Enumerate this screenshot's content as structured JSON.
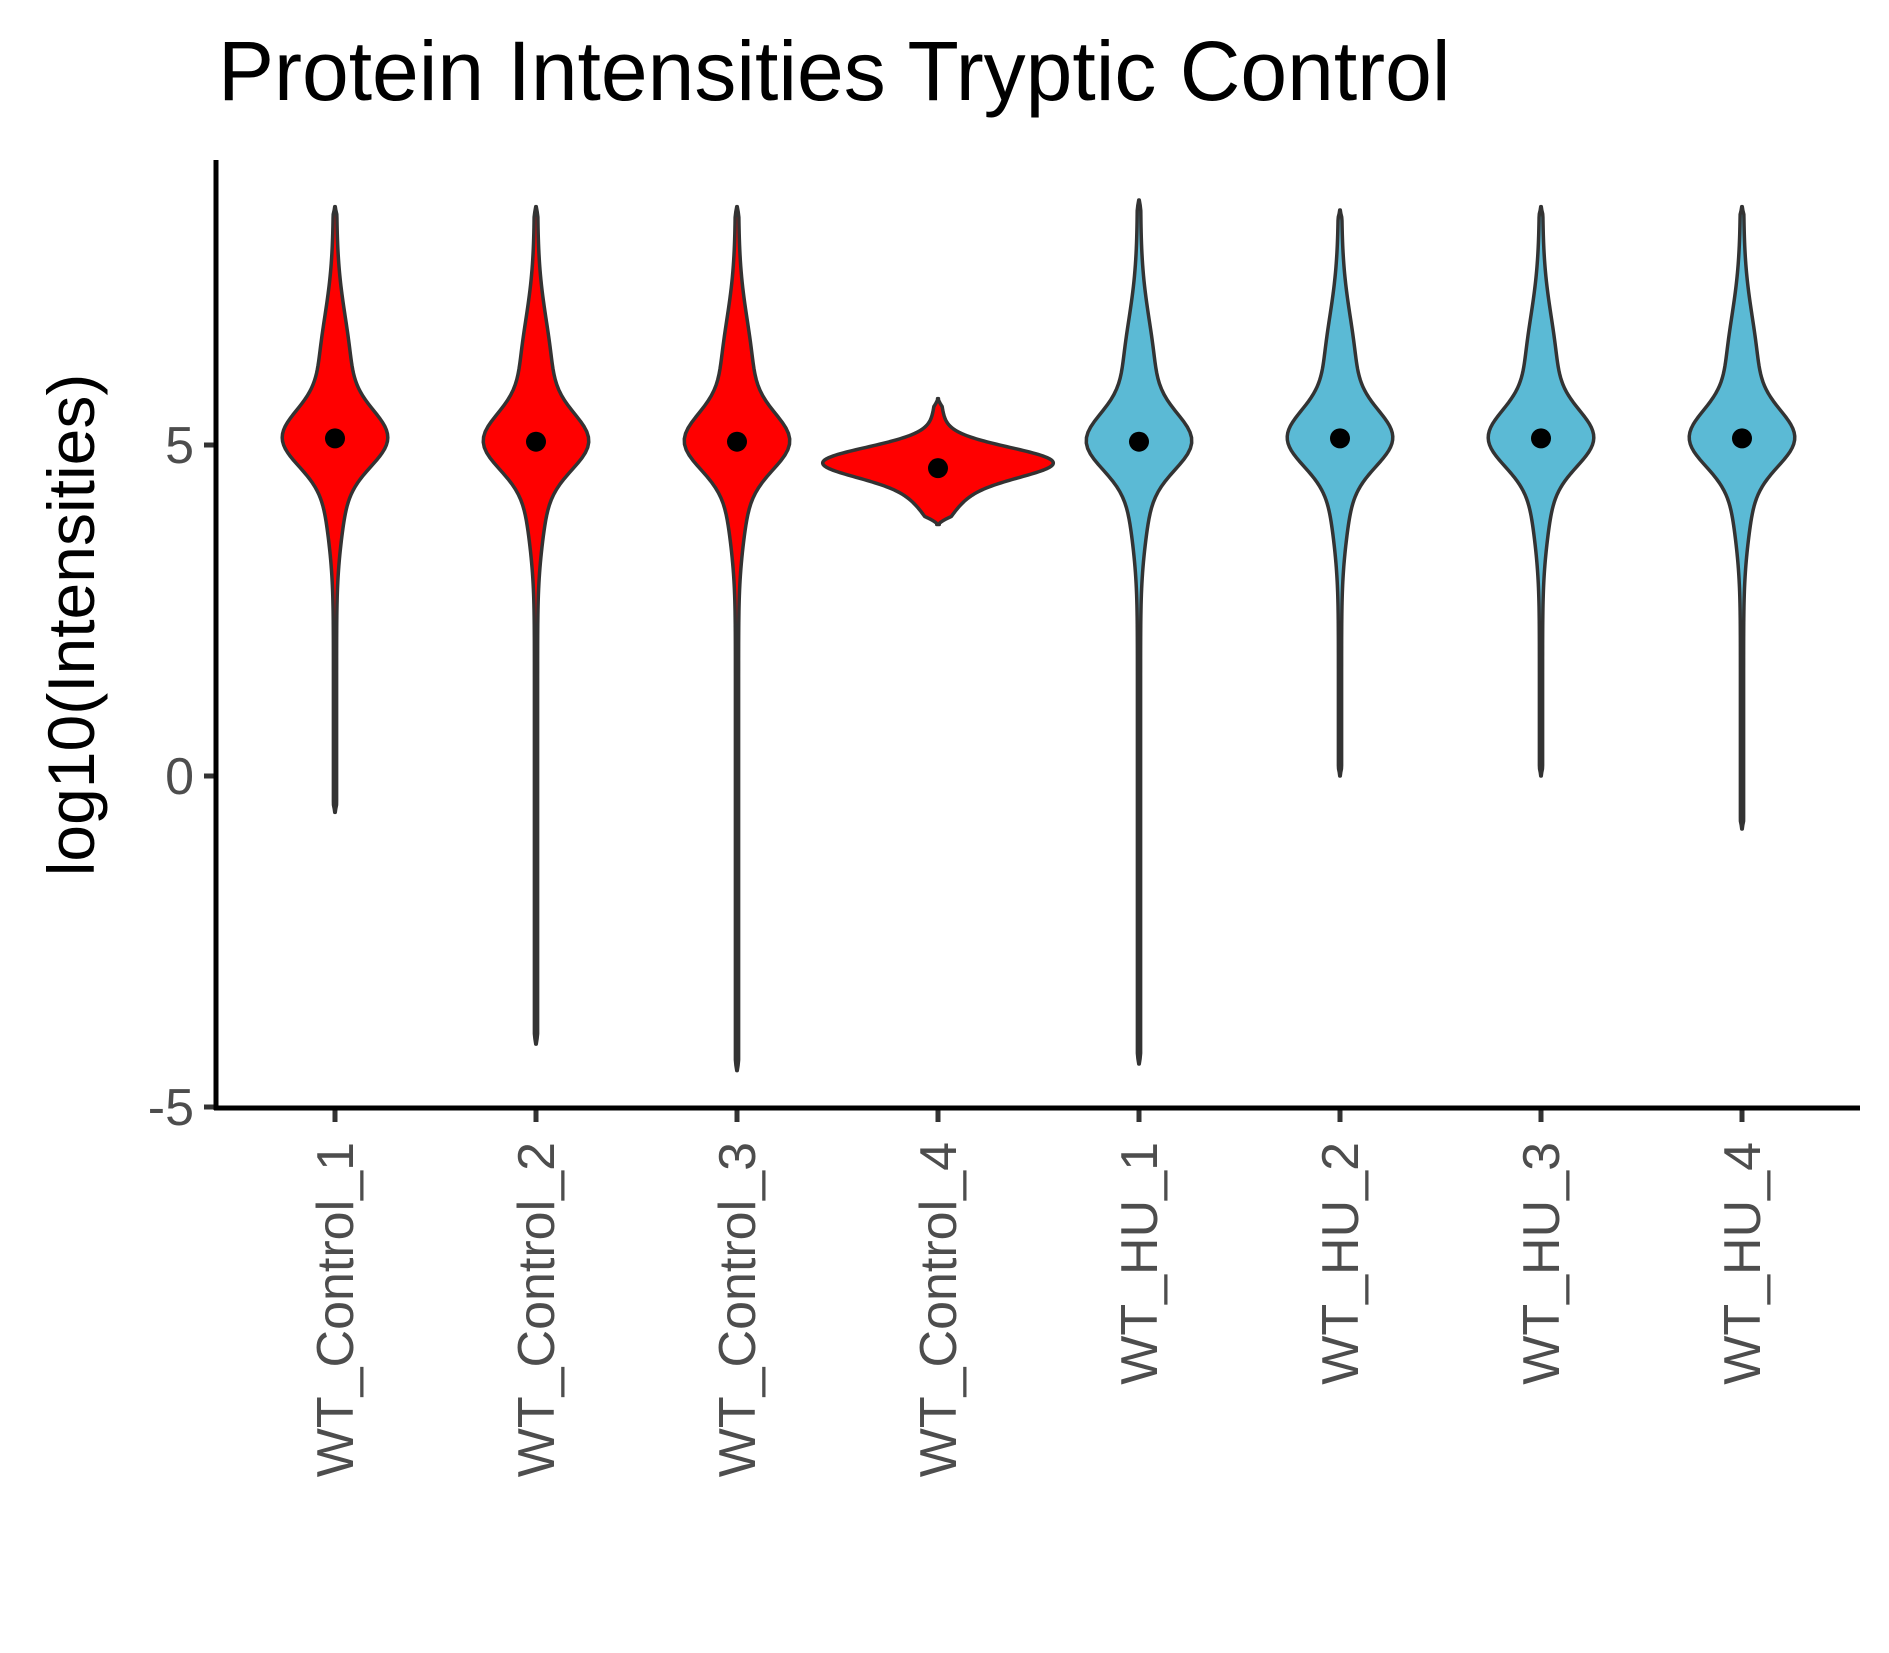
{
  "chart_data": {
    "type": "violin",
    "title": "Protein Intensities Tryptic Control",
    "xlabel": "",
    "ylabel": "log10(Intensities)",
    "ylim": [
      -5,
      9.3
    ],
    "yticks": [
      "-5",
      "0",
      "5"
    ],
    "grid": false,
    "legend": "none",
    "categories": [
      "WT_Control_1",
      "WT_Control_2",
      "WT_Control_3",
      "WT_Control_4",
      "WT_HU_1",
      "WT_HU_2",
      "WT_HU_3",
      "WT_HU_4"
    ],
    "fill_colors": [
      "#ff0000",
      "#ff0000",
      "#ff0000",
      "#ff0000",
      "#5bbad5",
      "#5bbad5",
      "#5bbad5",
      "#5bbad5"
    ],
    "outline_color": "#333333",
    "point_color": "#000000",
    "violins": [
      {
        "min": -0.55,
        "max": 8.6,
        "median": 5.1
      },
      {
        "min": -4.05,
        "max": 8.6,
        "median": 5.05
      },
      {
        "min": -4.45,
        "max": 8.6,
        "median": 5.05
      },
      {
        "min": 3.8,
        "max": 5.7,
        "median": 4.65
      },
      {
        "min": -4.35,
        "max": 8.7,
        "median": 5.05
      },
      {
        "min": 0.0,
        "max": 8.55,
        "median": 5.1
      },
      {
        "min": 0.0,
        "max": 8.6,
        "median": 5.1
      },
      {
        "min": -0.8,
        "max": 8.6,
        "median": 5.1
      }
    ]
  }
}
